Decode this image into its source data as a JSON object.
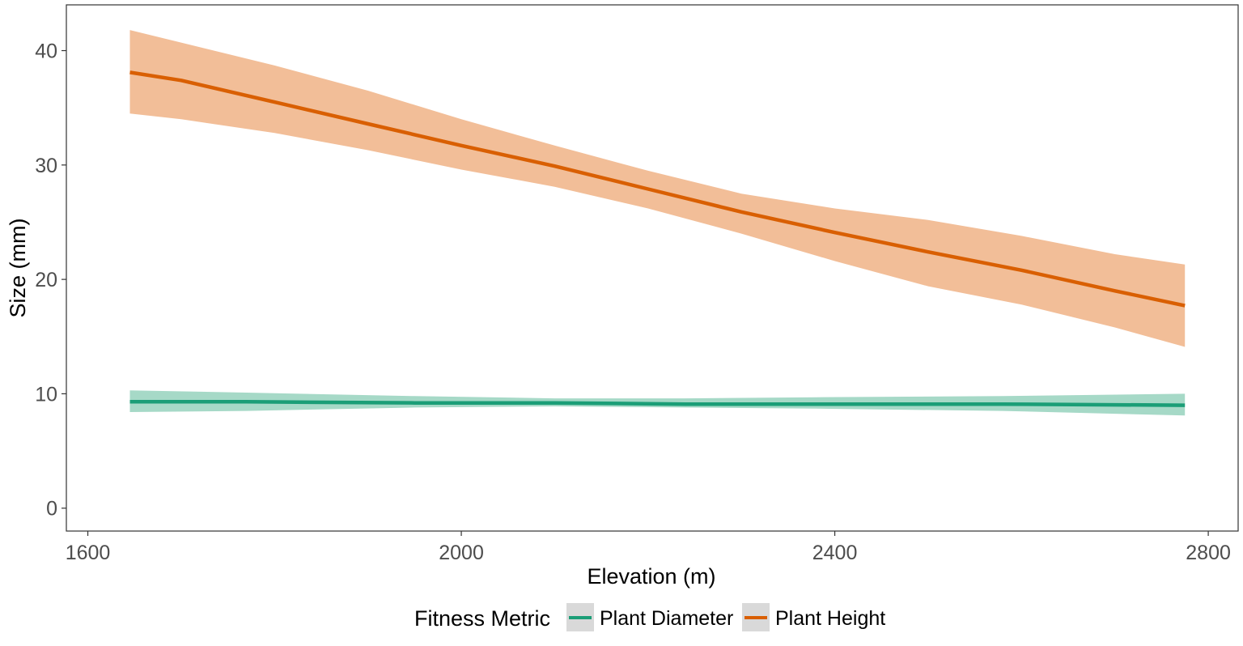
{
  "chart_data": {
    "type": "line",
    "title": "",
    "xlabel": "Elevation (m)",
    "ylabel": "Size (mm)",
    "xlim": [
      1577,
      2832
    ],
    "ylim": [
      -2,
      44
    ],
    "xticks": [
      1600,
      2000,
      2400,
      2800
    ],
    "yticks": [
      0,
      10,
      20,
      30,
      40
    ],
    "grid": false,
    "legend": {
      "title": "Fitness Metric",
      "position": "bottom"
    },
    "series": [
      {
        "name": "Plant Diameter",
        "color": "#1b9e77",
        "band_color": "#a6d9c7",
        "x": [
          1645,
          1770,
          1950,
          2100,
          2240,
          2380,
          2580,
          2775
        ],
        "y": [
          9.3,
          9.3,
          9.2,
          9.2,
          9.1,
          9.1,
          9.1,
          9.0
        ],
        "lower": [
          8.4,
          8.5,
          8.8,
          8.9,
          8.8,
          8.7,
          8.5,
          8.1
        ],
        "upper": [
          10.3,
          10.1,
          9.8,
          9.6,
          9.6,
          9.7,
          9.8,
          10.0
        ]
      },
      {
        "name": "Plant Height",
        "color": "#d95f02",
        "band_color": "#f2be98",
        "x": [
          1645,
          1700,
          1800,
          1900,
          2000,
          2100,
          2200,
          2300,
          2400,
          2500,
          2600,
          2700,
          2775
        ],
        "y": [
          38.1,
          37.4,
          35.5,
          33.6,
          31.7,
          29.9,
          27.9,
          25.9,
          24.1,
          22.4,
          20.8,
          19.0,
          17.7
        ],
        "lower": [
          34.5,
          34.0,
          32.8,
          31.3,
          29.6,
          28.1,
          26.2,
          24.0,
          21.6,
          19.4,
          17.8,
          15.8,
          14.1
        ],
        "upper": [
          41.8,
          40.7,
          38.7,
          36.5,
          34.0,
          31.7,
          29.5,
          27.5,
          26.2,
          25.2,
          23.8,
          22.2,
          21.3
        ]
      }
    ]
  }
}
